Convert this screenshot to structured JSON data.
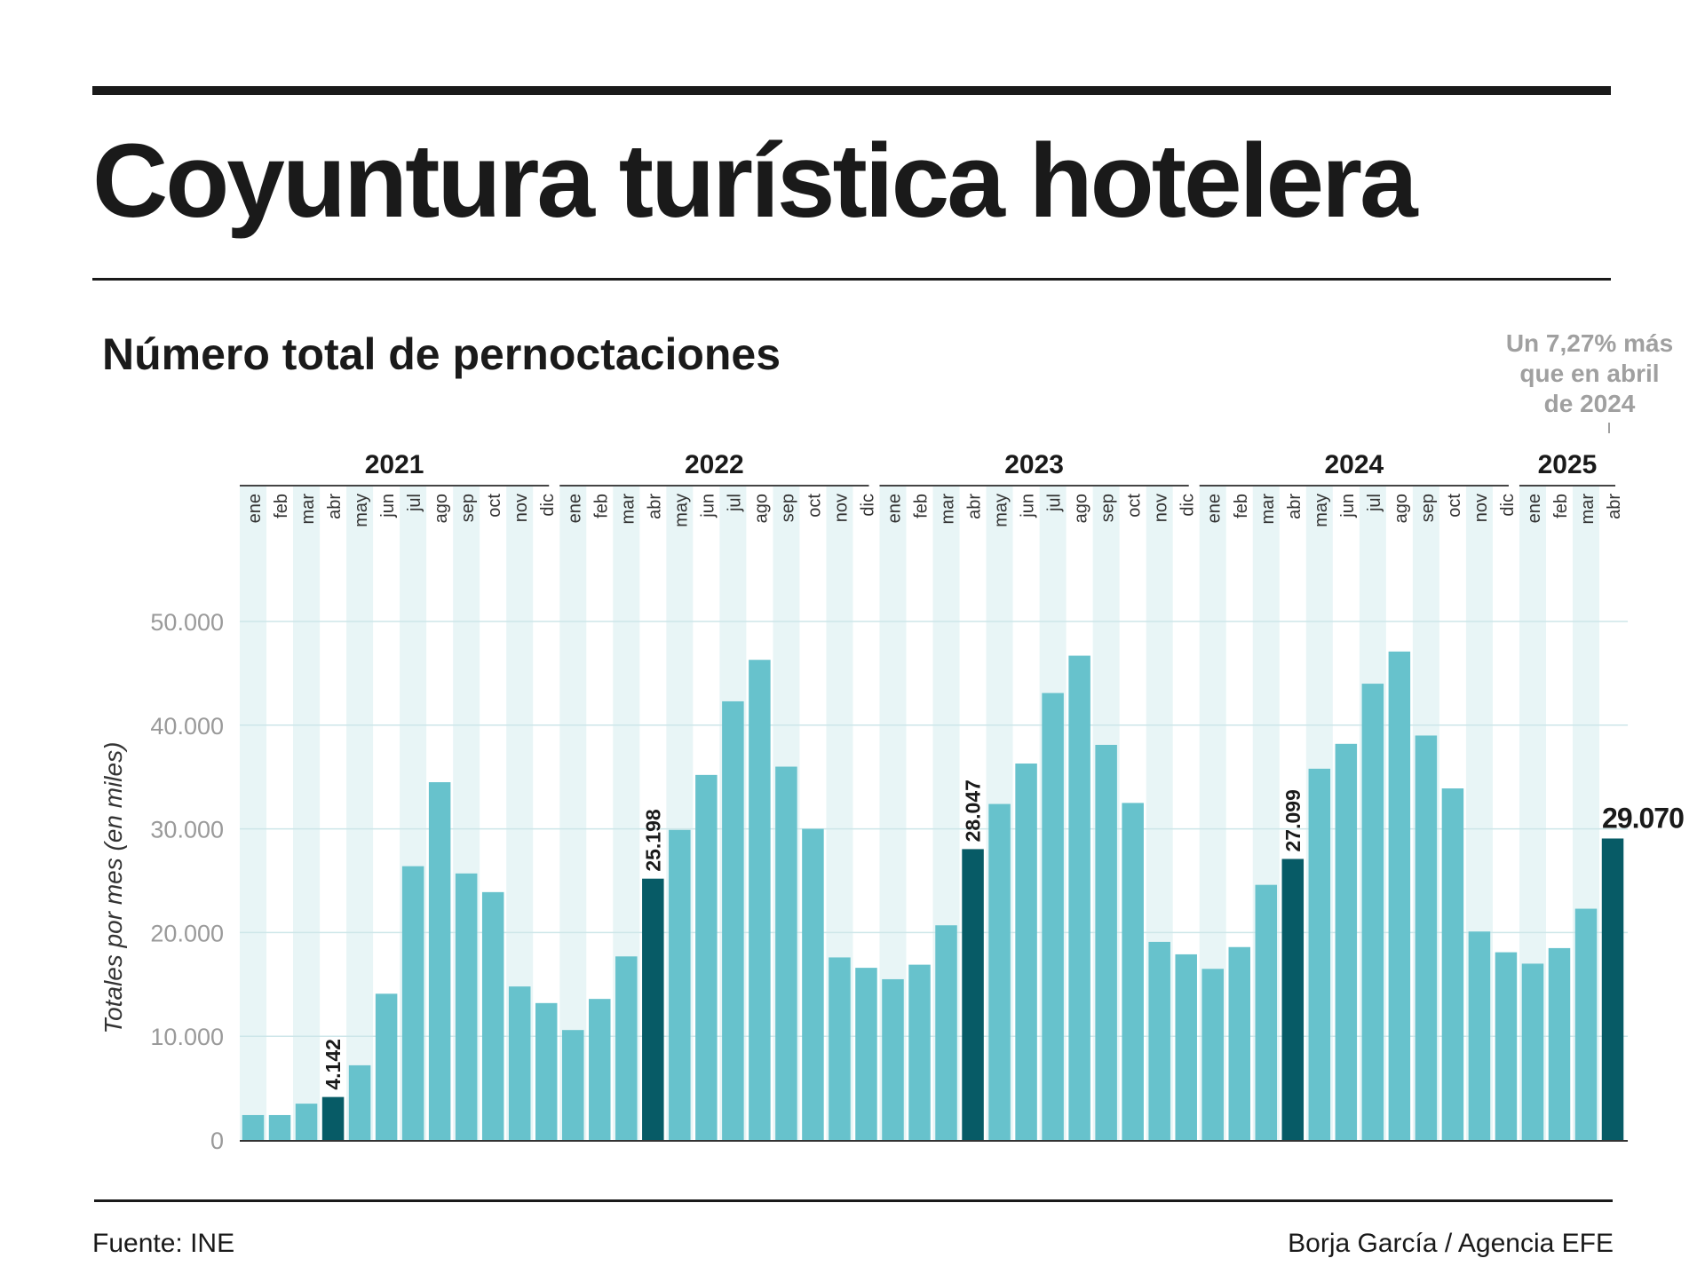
{
  "header": {
    "title": "Coyuntura turística hotelera",
    "subtitle": "Número total de pernoctaciones"
  },
  "annotation": {
    "line1": "Un 7,27% más",
    "line2": "que en abril",
    "line3": "de 2024"
  },
  "footer": {
    "source": "Fuente: INE",
    "credit": "Borja García / Agencia EFE"
  },
  "colors": {
    "bar": "#67c2cc",
    "highlight": "#075b66",
    "stripe": "#e8f5f6",
    "grid": "#cde6e9",
    "axis_text": "#9a9a9a"
  },
  "chart_data": {
    "type": "bar",
    "title": "Número total de pernoctaciones",
    "ylabel": "Totales por mes (en miles)",
    "xlabel": "",
    "ylim": [
      0,
      50000
    ],
    "yticks": [
      0,
      10000,
      20000,
      30000,
      40000,
      50000
    ],
    "ytick_labels": [
      "0",
      "10.000",
      "20.000",
      "30.000",
      "40.000",
      "50.000"
    ],
    "grid": true,
    "years": [
      {
        "label": "2021",
        "months": 12
      },
      {
        "label": "2022",
        "months": 12
      },
      {
        "label": "2023",
        "months": 12
      },
      {
        "label": "2024",
        "months": 12
      },
      {
        "label": "2025",
        "months": 4
      }
    ],
    "categories": [
      "ene",
      "feb",
      "mar",
      "abr",
      "may",
      "jun",
      "jul",
      "ago",
      "sep",
      "oct",
      "nov",
      "dic",
      "ene",
      "feb",
      "mar",
      "abr",
      "may",
      "jun",
      "jul",
      "ago",
      "sep",
      "oct",
      "nov",
      "dic",
      "ene",
      "feb",
      "mar",
      "abr",
      "may",
      "jun",
      "jul",
      "ago",
      "sep",
      "oct",
      "nov",
      "dic",
      "ene",
      "feb",
      "mar",
      "abr",
      "may",
      "jun",
      "jul",
      "ago",
      "sep",
      "oct",
      "nov",
      "dic",
      "ene",
      "feb",
      "mar",
      "abr"
    ],
    "values": [
      2400,
      2400,
      3500,
      4142,
      7200,
      14100,
      26400,
      34500,
      25700,
      23900,
      14800,
      13200,
      10600,
      13600,
      17700,
      25198,
      29900,
      35200,
      42300,
      46300,
      36000,
      30000,
      17600,
      16600,
      15500,
      16900,
      20700,
      28047,
      32400,
      36300,
      43100,
      46700,
      38100,
      32500,
      19100,
      17900,
      16500,
      18600,
      24600,
      27099,
      35800,
      38200,
      44000,
      47100,
      39000,
      33900,
      20100,
      18100,
      17000,
      18500,
      22300,
      29070
    ],
    "highlight_indices": [
      3,
      15,
      27,
      39,
      51
    ],
    "data_labels": [
      {
        "index": 3,
        "label": "4.142"
      },
      {
        "index": 15,
        "label": "25.198"
      },
      {
        "index": 27,
        "label": "28.047"
      },
      {
        "index": 39,
        "label": "27.099"
      },
      {
        "index": 51,
        "label": "29.070"
      }
    ]
  }
}
